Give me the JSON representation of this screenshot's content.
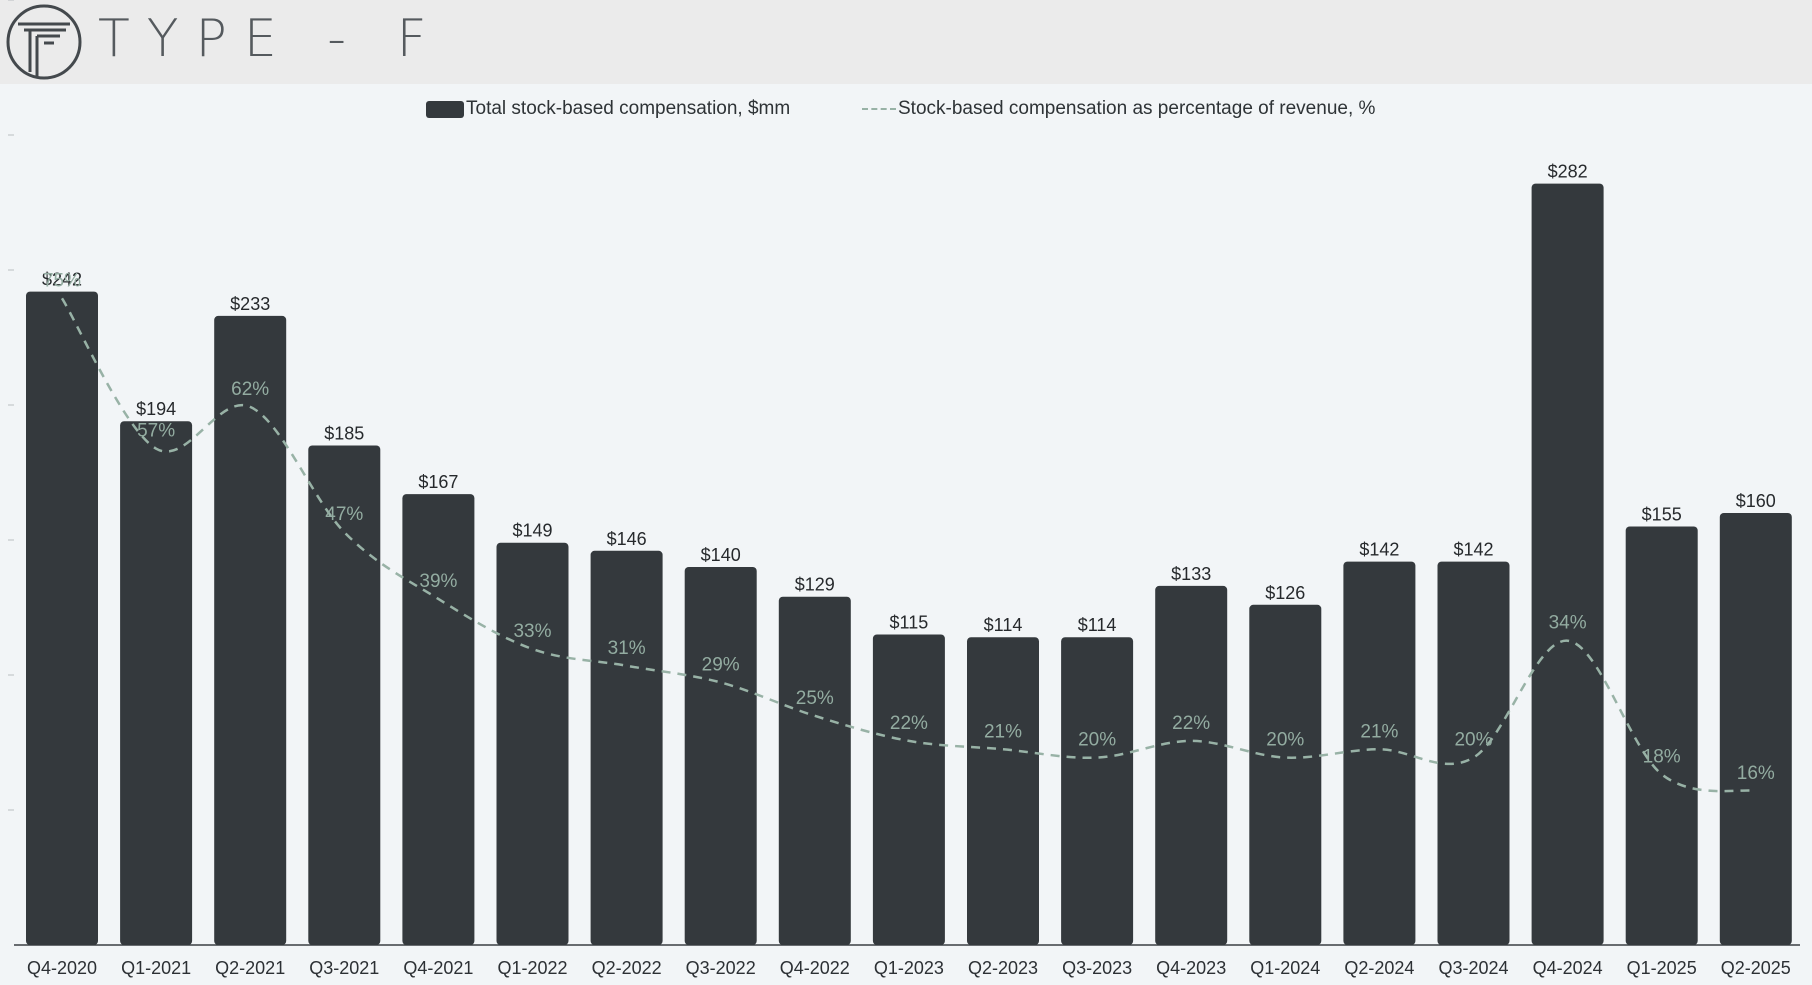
{
  "brand": {
    "name": "TYPE-F",
    "display": "TYPE - F"
  },
  "legend": {
    "bar_label": "Total stock-based compensation, $mm",
    "line_label": "Stock-based compensation as percentage of revenue, %"
  },
  "colors": {
    "bar": "#34393d",
    "line": "#98b2a6",
    "background": "#f2f5f7"
  },
  "chart_data": {
    "type": "bar",
    "title": "",
    "xlabel": "",
    "ylabel": "",
    "ylim": [
      0,
      300
    ],
    "categories": [
      "Q4-2020",
      "Q1-2021",
      "Q2-2021",
      "Q3-2021",
      "Q4-2021",
      "Q1-2022",
      "Q2-2022",
      "Q3-2022",
      "Q4-2022",
      "Q1-2023",
      "Q2-2023",
      "Q3-2023",
      "Q4-2023",
      "Q1-2024",
      "Q2-2024",
      "Q3-2024",
      "Q4-2024",
      "Q1-2025",
      "Q2-2025"
    ],
    "series": [
      {
        "name": "Total stock-based compensation, $mm",
        "type": "bar",
        "values": [
          242,
          194,
          233,
          185,
          167,
          149,
          146,
          140,
          129,
          115,
          114,
          114,
          133,
          126,
          142,
          142,
          282,
          155,
          160
        ],
        "labels": [
          "$242",
          "$194",
          "$233",
          "$185",
          "$167",
          "$149",
          "$146",
          "$140",
          "$129",
          "$115",
          "$114",
          "$114",
          "$133",
          "$126",
          "$142",
          "$142",
          "$282",
          "$155",
          "$160"
        ]
      },
      {
        "name": "Stock-based compensation as percentage of revenue, %",
        "type": "line",
        "style": "dashed",
        "values": [
          75,
          57,
          62,
          47,
          39,
          33,
          31,
          29,
          25,
          22,
          21,
          20,
          22,
          20,
          21,
          20,
          34,
          18,
          16
        ],
        "labels": [
          "75%",
          "57%",
          "62%",
          "47%",
          "39%",
          "33%",
          "31%",
          "29%",
          "25%",
          "22%",
          "21%",
          "20%",
          "22%",
          "20%",
          "21%",
          "20%",
          "34%",
          "18%",
          "16%"
        ]
      }
    ]
  }
}
